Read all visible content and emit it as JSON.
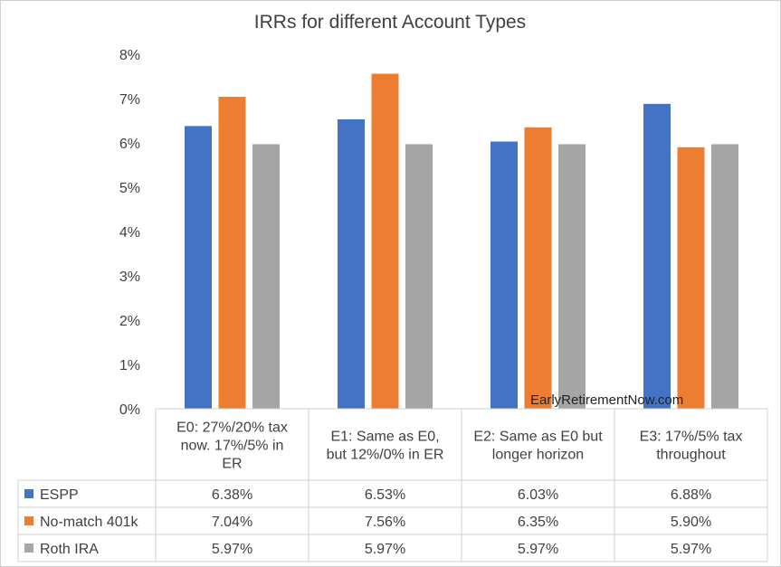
{
  "chart_data": {
    "type": "bar",
    "title": "IRRs for different Account Types",
    "categories": [
      [
        "E0: 27%/20% tax",
        "now. 17%/5% in",
        "ER"
      ],
      [
        "E1: Same as E0,",
        "but 12%/0% in ER"
      ],
      [
        "E2: Same as E0 but",
        "longer horizon"
      ],
      [
        "E3: 17%/5% tax",
        "throughout"
      ]
    ],
    "series": [
      {
        "name": "ESPP",
        "color": "#4472c4",
        "values": [
          6.38,
          6.53,
          6.03,
          6.88
        ],
        "labels": [
          "6.38%",
          "6.53%",
          "6.03%",
          "6.88%"
        ]
      },
      {
        "name": "No-match 401k",
        "color": "#ed7d31",
        "values": [
          7.04,
          7.56,
          6.35,
          5.9
        ],
        "labels": [
          "7.04%",
          "7.56%",
          "6.35%",
          "5.90%"
        ]
      },
      {
        "name": "Roth IRA",
        "color": "#a5a5a5",
        "values": [
          5.97,
          5.97,
          5.97,
          5.97
        ],
        "labels": [
          "5.97%",
          "5.97%",
          "5.97%",
          "5.97%"
        ]
      }
    ],
    "y_ticks": [
      "0%",
      "1%",
      "2%",
      "3%",
      "4%",
      "5%",
      "6%",
      "7%",
      "8%"
    ],
    "ylim": [
      0,
      8
    ],
    "grid": false,
    "legend": "data-table",
    "watermark": "EarlyRetirementNow.com"
  }
}
